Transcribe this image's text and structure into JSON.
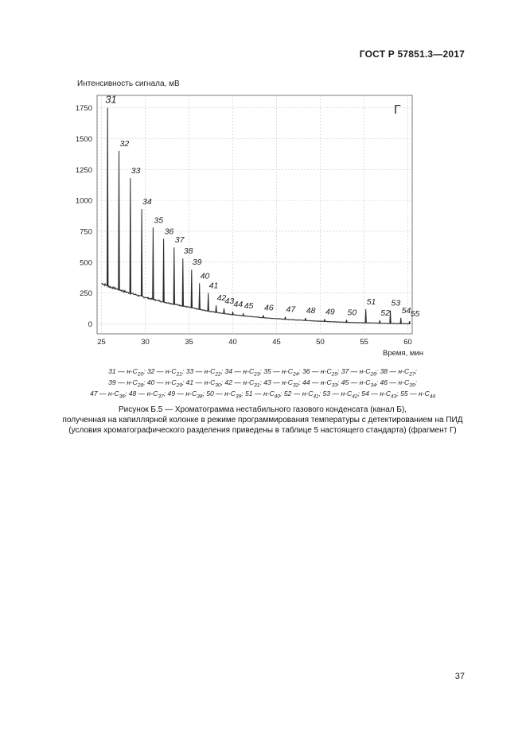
{
  "header": {
    "standard": "ГОСТ Р 57851.3—2017"
  },
  "chart_data": {
    "type": "line",
    "ylabel": "Интенсивность сигнала, мВ",
    "xlabel": "Время, мин",
    "panel_label": "Г",
    "xlim": [
      24.5,
      60.5
    ],
    "ylim": [
      -80,
      1850
    ],
    "x_ticks": [
      25,
      30,
      35,
      40,
      45,
      50,
      55,
      60
    ],
    "y_ticks": [
      0,
      250,
      500,
      750,
      1000,
      1250,
      1500,
      1750
    ],
    "grid": true,
    "baseline": {
      "x": [
        25.0,
        26.0,
        28.0,
        30.0,
        32.0,
        34.0,
        36.0,
        38.0,
        40.0,
        42.0,
        44.0,
        46.0,
        48.0,
        50.0,
        52.0,
        54.0,
        56.0,
        58.0,
        60.0
      ],
      "y": [
        330,
        300,
        255,
        215,
        180,
        150,
        120,
        95,
        75,
        60,
        48,
        38,
        30,
        22,
        16,
        11,
        8,
        5,
        2
      ]
    },
    "peaks": [
      {
        "label": "31",
        "x": 25.7,
        "y": 1750
      },
      {
        "label": "32",
        "x": 27.0,
        "y": 1400
      },
      {
        "label": "33",
        "x": 28.3,
        "y": 1180
      },
      {
        "label": "34",
        "x": 29.6,
        "y": 930
      },
      {
        "label": "35",
        "x": 30.9,
        "y": 780
      },
      {
        "label": "36",
        "x": 32.1,
        "y": 690
      },
      {
        "label": "37",
        "x": 33.3,
        "y": 620
      },
      {
        "label": "38",
        "x": 34.3,
        "y": 530
      },
      {
        "label": "39",
        "x": 35.3,
        "y": 440
      },
      {
        "label": "40",
        "x": 36.2,
        "y": 330
      },
      {
        "label": "41",
        "x": 37.2,
        "y": 250
      },
      {
        "label": "42",
        "x": 38.1,
        "y": 150
      },
      {
        "label": "43",
        "x": 39.0,
        "y": 125
      },
      {
        "label": "44",
        "x": 40.0,
        "y": 100
      },
      {
        "label": "45",
        "x": 41.2,
        "y": 80
      },
      {
        "label": "46",
        "x": 43.5,
        "y": 45
      },
      {
        "label": "47",
        "x": 46.0,
        "y": 30
      },
      {
        "label": "48",
        "x": 48.3,
        "y": 30
      },
      {
        "label": "49",
        "x": 50.5,
        "y": 22
      },
      {
        "label": "50",
        "x": 53.0,
        "y": 8
      },
      {
        "label": "51",
        "x": 55.2,
        "y": 120
      },
      {
        "label": "52",
        "x": 56.8,
        "y": 30
      },
      {
        "label": "53",
        "x": 58.0,
        "y": 110
      },
      {
        "label": "54",
        "x": 59.2,
        "y": 50
      },
      {
        "label": "55",
        "x": 60.2,
        "y": 20
      }
    ]
  },
  "legend": {
    "line1": [
      {
        "num": "31",
        "name": "н-С",
        "sub": "20"
      },
      {
        "num": "32",
        "name": "н-С",
        "sub": "21"
      },
      {
        "num": "33",
        "name": "н-С",
        "sub": "22"
      },
      {
        "num": "34",
        "name": "н-С",
        "sub": "23"
      },
      {
        "num": "35",
        "name": "н-С",
        "sub": "24"
      },
      {
        "num": "36",
        "name": "н-С",
        "sub": "25"
      },
      {
        "num": "37",
        "name": "н-С",
        "sub": "26"
      },
      {
        "num": "38",
        "name": "н-С",
        "sub": "27"
      }
    ],
    "line2": [
      {
        "num": "39",
        "name": "н-С",
        "sub": "28"
      },
      {
        "num": "40",
        "name": "н-С",
        "sub": "29"
      },
      {
        "num": "41",
        "name": "н-С",
        "sub": "30"
      },
      {
        "num": "42",
        "name": "н-С",
        "sub": "31"
      },
      {
        "num": "43",
        "name": "н-С",
        "sub": "32"
      },
      {
        "num": "44",
        "name": "н-С",
        "sub": "33"
      },
      {
        "num": "45",
        "name": "н-С",
        "sub": "34"
      },
      {
        "num": "46",
        "name": "н-С",
        "sub": "35"
      }
    ],
    "line3": [
      {
        "num": "47",
        "name": "н-С",
        "sub": "36"
      },
      {
        "num": "48",
        "name": "н-С",
        "sub": "37"
      },
      {
        "num": "49",
        "name": "н-С",
        "sub": "38"
      },
      {
        "num": "50",
        "name": "н-С",
        "sub": "39"
      },
      {
        "num": "51",
        "name": "н-С",
        "sub": "40"
      },
      {
        "num": "52",
        "name": "н-С",
        "sub": "41"
      },
      {
        "num": "53",
        "name": "н-С",
        "sub": "42"
      },
      {
        "num": "54",
        "name": "н-С",
        "sub": "43"
      },
      {
        "num": "55",
        "name": "н-С",
        "sub": "44"
      }
    ]
  },
  "caption": {
    "line1": "Рисунок Б.5 — Хроматограмма нестабильного газового конденсата (канал Б),",
    "line2": "полученная на капиллярной колонке в режиме программирования температуры с детектированием на ПИД",
    "line3": "(условия хроматографического разделения приведены в таблице 5 настоящего стандарта) (фрагмент Г)"
  },
  "page_number": "37"
}
